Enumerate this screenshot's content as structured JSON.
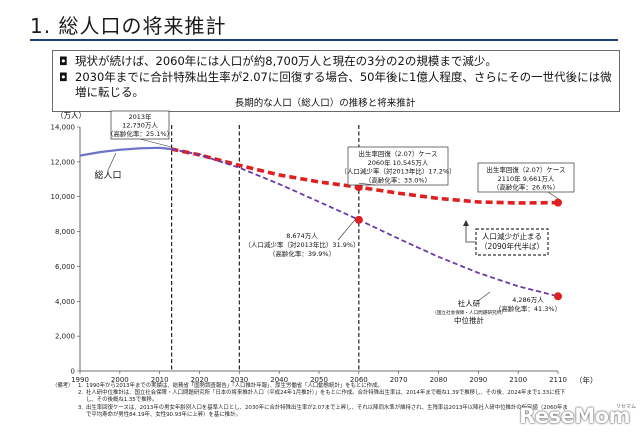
{
  "slide": {
    "title": "1. 総人口の将来推計",
    "bullets": [
      "現状が続けば、2060年には人口が約8,700万人と現在の3分の2の規模まで減少。",
      "2030年までに合計特殊出生率が2.07に回復する場合、50年後に1億人程度、さらにその一世代後には微増に転じる。"
    ],
    "bullet_mark": "◘"
  },
  "chart_data": {
    "type": "line",
    "title": "長期的な人口（総人口）の推移と将来推計",
    "ylabel": "（万人）",
    "xlabel": "（年）",
    "ylim": [
      0,
      14000
    ],
    "xlim": [
      1990,
      2110
    ],
    "x_ticks": [
      "1990",
      "2000",
      "2010",
      "2020",
      "2030",
      "2040",
      "2050",
      "2060",
      "2070",
      "2080",
      "2090",
      "2100",
      "2110"
    ],
    "y_ticks": [
      "0",
      "2,000",
      "4,000",
      "6,000",
      "8,000",
      "10,000",
      "12,000",
      "14,000"
    ],
    "reference_years": [
      2013,
      2030,
      2060
    ],
    "series": [
      {
        "name": "総人口",
        "style": "solid",
        "color": "#6b72c8",
        "x": [
          1990,
          1995,
          2000,
          2005,
          2010,
          2013
        ],
        "y": [
          12361,
          12557,
          12693,
          12777,
          12806,
          12730
        ]
      },
      {
        "name": "出生率回復(2.07)ケース",
        "style": "dashed-thick",
        "color": "#e02020",
        "x": [
          2013,
          2020,
          2030,
          2040,
          2050,
          2060,
          2070,
          2080,
          2090,
          2100,
          2110
        ],
        "y": [
          12730,
          12400,
          11800,
          11250,
          10850,
          10545,
          10200,
          9900,
          9700,
          9640,
          9661
        ]
      },
      {
        "name": "社人研中位推計",
        "style": "dashed",
        "color": "#6a3aa8",
        "x": [
          2013,
          2020,
          2030,
          2040,
          2050,
          2060,
          2070,
          2080,
          2090,
          2100,
          2110
        ],
        "y": [
          12730,
          12410,
          11662,
          10728,
          9708,
          8674,
          7590,
          6550,
          5630,
          4860,
          4286
        ]
      }
    ],
    "markers": [
      {
        "x": 2060,
        "y": 10545,
        "color": "#e02020"
      },
      {
        "x": 2110,
        "y": 9661,
        "color": "#e02020"
      },
      {
        "x": 2060,
        "y": 8674,
        "color": "#e02020"
      },
      {
        "x": 2110,
        "y": 4286,
        "color": "#e02020"
      }
    ],
    "annotations": {
      "a2013": [
        "2013年",
        "12,730万人",
        "（高齢化率：25.1%）"
      ],
      "a2060hi": [
        "出生率回復（2.07）ケース",
        "2060年 10,545万人",
        "（人口減少率（対2013年比）17.2%）",
        "（高齢化率：33.0%）"
      ],
      "a2110hi": [
        "出生率回復（2.07）ケース",
        "2110年 9,661万人",
        "（高齢化率：26.6%）"
      ],
      "a2060lo": [
        "8,674万人",
        "（人口減少率（対2013年比）31.9%）",
        "（高齢化率：39.9%）"
      ],
      "a2110lo": [
        "4,286万人",
        "（高齢化率：41.3%）"
      ],
      "stop": [
        "人口減少が止まる",
        "（2090年代半ば）"
      ],
      "total_label": "総人口",
      "ipss": [
        "社人研",
        "（国立社会保障・人口問題研究所）",
        "中位推計"
      ]
    }
  },
  "footnotes": {
    "head": "（備考）",
    "items": [
      {
        "k": "1.",
        "t": "1990年から2013年までの実績は、総務省「国勢調査報告」「人口推計年報」、厚生労働省「人口動態統計」をもとに作成。"
      },
      {
        "k": "2.",
        "t": "社人研中位推計は、国立社会保障・人口問題研究所「日本の将来推計人口（平成24年1月推計）」をもとに作成。合計特殊出生率は、2014年まで概ね1.39で推移し、その後、2024年まで1.33に低下し、その後概ね1.35で推移。"
      },
      {
        "k": "3.",
        "t": "出生率回復ケースは、2013年の男女年齢別人口を基準人口とし、2030年に合計特殊出生率が2.07まで上昇し、それ以降同水準が維持され、生残率は2013年以降社人研中位推計の仮定値（2060年まで平均寿命が男性84.19年、女性90.93年に上昇）を基に推計。"
      }
    ]
  },
  "brand": {
    "logo": "ResеMom",
    "sub": "リセマム"
  }
}
